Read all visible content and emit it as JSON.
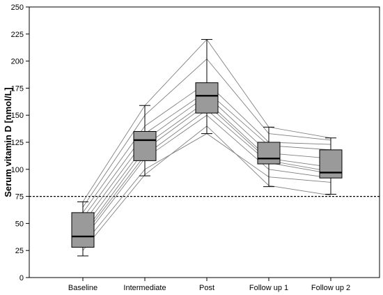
{
  "chart_data": {
    "type": "box",
    "ylabel": "Serum vitamin D [nmol/L]",
    "xlabel": "",
    "ylim": [
      0,
      250
    ],
    "yticks": [
      0,
      25,
      50,
      75,
      100,
      125,
      150,
      175,
      200,
      225,
      250
    ],
    "grid": false,
    "categories": [
      "Baseline",
      "Intermediate",
      "Post",
      "Follow up 1",
      "Follow up 2"
    ],
    "boxes": [
      {
        "whisker_low": 20,
        "q1": 28,
        "median": 38,
        "q3": 60,
        "whisker_high": 70
      },
      {
        "whisker_low": 94,
        "q1": 108,
        "median": 127,
        "q3": 135,
        "whisker_high": 159
      },
      {
        "whisker_low": 133,
        "q1": 152,
        "median": 168,
        "q3": 180,
        "whisker_high": 220
      },
      {
        "whisker_low": 84,
        "q1": 105,
        "median": 110,
        "q3": 125,
        "whisker_high": 139
      },
      {
        "whisker_low": 77,
        "q1": 92,
        "median": 97,
        "q3": 118,
        "whisker_high": 129
      }
    ],
    "reference_line": {
      "y": 75,
      "style": "dashed"
    },
    "subject_trajectories": [
      [
        25,
        95,
        140,
        85,
        76
      ],
      [
        30,
        100,
        133,
        93,
        88
      ],
      [
        35,
        110,
        150,
        100,
        92
      ],
      [
        38,
        113,
        155,
        106,
        96
      ],
      [
        40,
        118,
        160,
        108,
        98
      ],
      [
        45,
        122,
        163,
        110,
        102
      ],
      [
        50,
        127,
        168,
        115,
        110
      ],
      [
        55,
        133,
        172,
        122,
        118
      ],
      [
        60,
        140,
        180,
        125,
        123
      ],
      [
        65,
        150,
        202,
        133,
        127
      ],
      [
        70,
        159,
        220,
        139,
        129
      ]
    ]
  }
}
